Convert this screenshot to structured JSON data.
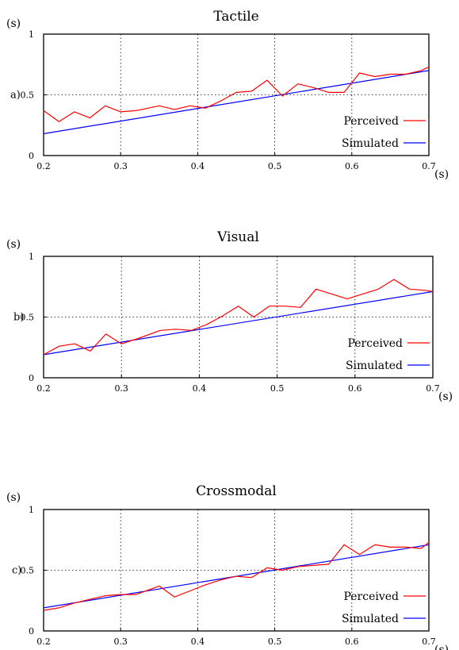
{
  "chart_data": [
    {
      "type": "line",
      "panel_label": "a)",
      "title": "Tactile",
      "xlabel": "(s)",
      "ylabel": "(s)",
      "xlim": [
        0.2,
        0.7
      ],
      "ylim": [
        0,
        1
      ],
      "xticks": [
        "0.2",
        "0.3",
        "0.4",
        "0.5",
        "0.6",
        "0.7"
      ],
      "yticks": [
        "0",
        "0.5",
        "1"
      ],
      "grid": true,
      "legend_position": "bottom-right",
      "series": [
        {
          "name": "Perceived",
          "color": "#ff0000",
          "x": [
            0.2,
            0.22,
            0.24,
            0.26,
            0.28,
            0.3,
            0.32,
            0.35,
            0.37,
            0.39,
            0.41,
            0.43,
            0.45,
            0.47,
            0.49,
            0.51,
            0.53,
            0.55,
            0.57,
            0.59,
            0.61,
            0.63,
            0.65,
            0.67,
            0.69,
            0.7
          ],
          "y": [
            0.37,
            0.28,
            0.36,
            0.31,
            0.41,
            0.36,
            0.37,
            0.41,
            0.38,
            0.41,
            0.39,
            0.45,
            0.52,
            0.53,
            0.62,
            0.49,
            0.59,
            0.56,
            0.52,
            0.52,
            0.68,
            0.65,
            0.67,
            0.67,
            0.7,
            0.73
          ]
        },
        {
          "name": "Simulated",
          "color": "#0000ff",
          "x": [
            0.2,
            0.7
          ],
          "y": [
            0.18,
            0.7
          ]
        }
      ]
    },
    {
      "type": "line",
      "panel_label": "b)",
      "title": "Visual",
      "xlabel": "(s)",
      "ylabel": "(s)",
      "xlim": [
        0.2,
        0.7
      ],
      "ylim": [
        0,
        1
      ],
      "xticks": [
        "0.2",
        "0.3",
        "0.4",
        "0.5",
        "0.6",
        "0.7"
      ],
      "yticks": [
        "0",
        "0.5",
        "1"
      ],
      "grid": true,
      "legend_position": "bottom-right",
      "series": [
        {
          "name": "Perceived",
          "color": "#ff0000",
          "x": [
            0.2,
            0.22,
            0.24,
            0.26,
            0.28,
            0.3,
            0.32,
            0.35,
            0.37,
            0.39,
            0.41,
            0.43,
            0.45,
            0.47,
            0.49,
            0.51,
            0.53,
            0.55,
            0.57,
            0.59,
            0.61,
            0.63,
            0.65,
            0.67,
            0.69,
            0.7
          ],
          "y": [
            0.19,
            0.26,
            0.28,
            0.22,
            0.36,
            0.28,
            0.32,
            0.39,
            0.4,
            0.39,
            0.44,
            0.51,
            0.59,
            0.5,
            0.59,
            0.59,
            0.58,
            0.73,
            0.69,
            0.65,
            0.69,
            0.73,
            0.81,
            0.73,
            0.72,
            0.71
          ]
        },
        {
          "name": "Simulated",
          "color": "#0000ff",
          "x": [
            0.2,
            0.7
          ],
          "y": [
            0.19,
            0.71
          ]
        }
      ]
    },
    {
      "type": "line",
      "panel_label": "c)",
      "title": "Crossmodal",
      "xlabel": "(s)",
      "ylabel": "(s)",
      "xlim": [
        0.2,
        0.7
      ],
      "ylim": [
        0,
        1
      ],
      "xticks": [
        "0.2",
        "0.3",
        "0.4",
        "0.5",
        "0.6",
        "0.7"
      ],
      "yticks": [
        "0",
        "0.5",
        "1"
      ],
      "grid": true,
      "legend_position": "bottom-right",
      "series": [
        {
          "name": "Perceived",
          "color": "#ff0000",
          "x": [
            0.2,
            0.22,
            0.24,
            0.26,
            0.28,
            0.3,
            0.32,
            0.35,
            0.37,
            0.39,
            0.41,
            0.43,
            0.45,
            0.47,
            0.49,
            0.51,
            0.53,
            0.55,
            0.57,
            0.59,
            0.61,
            0.63,
            0.65,
            0.67,
            0.69,
            0.7
          ],
          "y": [
            0.17,
            0.19,
            0.23,
            0.26,
            0.29,
            0.3,
            0.3,
            0.37,
            0.28,
            0.33,
            0.38,
            0.42,
            0.45,
            0.44,
            0.52,
            0.5,
            0.53,
            0.54,
            0.55,
            0.71,
            0.63,
            0.71,
            0.69,
            0.69,
            0.68,
            0.73
          ]
        },
        {
          "name": "Simulated",
          "color": "#0000ff",
          "x": [
            0.2,
            0.7
          ],
          "y": [
            0.19,
            0.71
          ]
        }
      ]
    }
  ]
}
